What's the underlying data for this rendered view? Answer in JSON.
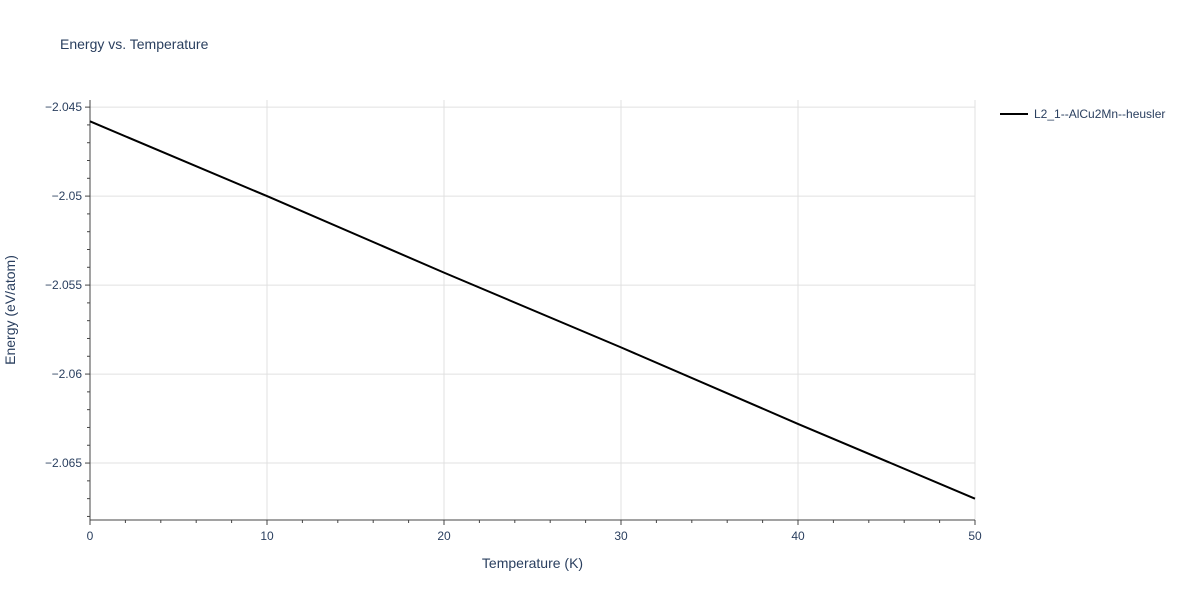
{
  "chart_data": {
    "type": "line",
    "title": "Energy vs. Temperature",
    "xlabel": "Temperature (K)",
    "ylabel": "Energy (eV/atom)",
    "xlim": [
      0,
      50
    ],
    "ylim": [
      -2.0682,
      -2.0446
    ],
    "x_ticks": [
      0,
      10,
      20,
      30,
      40,
      50
    ],
    "y_ticks": [
      -2.045,
      -2.05,
      -2.055,
      -2.06,
      -2.065
    ],
    "x_tick_labels": [
      "0",
      "10",
      "20",
      "30",
      "40",
      "50"
    ],
    "y_tick_labels": [
      "−2.045",
      "−2.05",
      "−2.055",
      "−2.06",
      "−2.065"
    ],
    "grid": true,
    "legend_position": "top-right outside",
    "series": [
      {
        "name": "L2_1--AlCu2Mn--heusler",
        "color": "#000000",
        "x": [
          0,
          10,
          20,
          30,
          40,
          50
        ],
        "y": [
          -2.0458,
          -2.05,
          -2.0543,
          -2.0585,
          -2.0628,
          -2.067
        ]
      }
    ]
  }
}
